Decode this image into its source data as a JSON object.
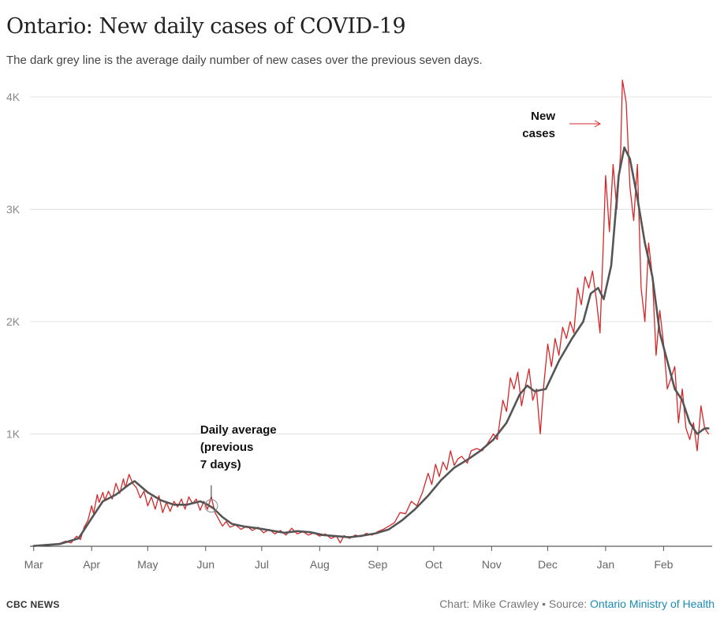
{
  "header": {
    "title": "Ontario: New daily cases of COVID-19",
    "subtitle": "The dark grey line is the average daily number of new cases over the previous seven days."
  },
  "footer": {
    "brand": "CBC NEWS",
    "credit_prefix": "Chart: Mike Crawley • Source: ",
    "source_link": "Ontario Ministry of Health"
  },
  "colors": {
    "daily_line": "#d62728",
    "average_line": "#555555",
    "grid": "#e3e3e3",
    "link": "#1a8bb8"
  },
  "chart_data": {
    "type": "line",
    "xlim": [
      "2020-02-28",
      "2021-02-27"
    ],
    "ylim": [
      0,
      4000
    ],
    "y_ticks": [
      {
        "v": 1000,
        "label": "1K"
      },
      {
        "v": 2000,
        "label": "2K"
      },
      {
        "v": 3000,
        "label": "3K"
      },
      {
        "v": 4000,
        "label": "4K"
      }
    ],
    "x_ticks": [
      {
        "date": "2020-03-01",
        "label": "Mar"
      },
      {
        "date": "2020-04-01",
        "label": "Apr"
      },
      {
        "date": "2020-05-01",
        "label": "May"
      },
      {
        "date": "2020-06-01",
        "label": "Jun"
      },
      {
        "date": "2020-07-01",
        "label": "Jul"
      },
      {
        "date": "2020-08-01",
        "label": "Aug"
      },
      {
        "date": "2020-09-01",
        "label": "Sep"
      },
      {
        "date": "2020-10-01",
        "label": "Oct"
      },
      {
        "date": "2020-11-01",
        "label": "Nov"
      },
      {
        "date": "2020-12-01",
        "label": "Dec"
      },
      {
        "date": "2021-01-01",
        "label": "Jan"
      },
      {
        "date": "2021-02-01",
        "label": "Feb"
      }
    ],
    "grid": true,
    "series": [
      {
        "key": "daily",
        "points": [
          [
            "2020-03-01",
            3
          ],
          [
            "2020-03-06",
            6
          ],
          [
            "2020-03-11",
            15
          ],
          [
            "2020-03-15",
            25
          ],
          [
            "2020-03-18",
            45
          ],
          [
            "2020-03-21",
            30
          ],
          [
            "2020-03-24",
            90
          ],
          [
            "2020-03-26",
            60
          ],
          [
            "2020-03-28",
            170
          ],
          [
            "2020-03-30",
            230
          ],
          [
            "2020-04-01",
            360
          ],
          [
            "2020-04-02",
            290
          ],
          [
            "2020-04-04",
            460
          ],
          [
            "2020-04-05",
            390
          ],
          [
            "2020-04-07",
            480
          ],
          [
            "2020-04-08",
            410
          ],
          [
            "2020-04-10",
            490
          ],
          [
            "2020-04-12",
            420
          ],
          [
            "2020-04-14",
            560
          ],
          [
            "2020-04-16",
            470
          ],
          [
            "2020-04-18",
            600
          ],
          [
            "2020-04-19,",
            520
          ],
          [
            "2020-04-21",
            640
          ],
          [
            "2020-04-23",
            560
          ],
          [
            "2020-04-25",
            520
          ],
          [
            "2020-04-27",
            430
          ],
          [
            "2020-04-29",
            490
          ],
          [
            "2020-05-01",
            360
          ],
          [
            "2020-05-03",
            440
          ],
          [
            "2020-05-05",
            330
          ],
          [
            "2020-05-07",
            450
          ],
          [
            "2020-05-09",
            300
          ],
          [
            "2020-05-11",
            390
          ],
          [
            "2020-05-13",
            310
          ],
          [
            "2020-05-15",
            400
          ],
          [
            "2020-05-17",
            350
          ],
          [
            "2020-05-19",
            420
          ],
          [
            "2020-05-21",
            330
          ],
          [
            "2020-05-23",
            440
          ],
          [
            "2020-05-25",
            380
          ],
          [
            "2020-05-27",
            420
          ],
          [
            "2020-05-29",
            320
          ],
          [
            "2020-05-31",
            400
          ],
          [
            "2020-06-02",
            330
          ],
          [
            "2020-06-04",
            440
          ],
          [
            "2020-06-06",
            300
          ],
          [
            "2020-06-08",
            240
          ],
          [
            "2020-06-10",
            180
          ],
          [
            "2020-06-12",
            220
          ],
          [
            "2020-06-14",
            170
          ],
          [
            "2020-06-17",
            190
          ],
          [
            "2020-06-20",
            150
          ],
          [
            "2020-06-23",
            180
          ],
          [
            "2020-06-26",
            140
          ],
          [
            "2020-06-29",
            170
          ],
          [
            "2020-07-02",
            120
          ],
          [
            "2020-07-05",
            150
          ],
          [
            "2020-07-08",
            110
          ],
          [
            "2020-07-11",
            140
          ],
          [
            "2020-07-14",
            100
          ],
          [
            "2020-07-17",
            160
          ],
          [
            "2020-07-20",
            110
          ],
          [
            "2020-07-23",
            130
          ],
          [
            "2020-07-26",
            100
          ],
          [
            "2020-07-29",
            120
          ],
          [
            "2020-08-01",
            90
          ],
          [
            "2020-08-04",
            110
          ],
          [
            "2020-08-07",
            70
          ],
          [
            "2020-08-10",
            90
          ],
          [
            "2020-08-12",
            30
          ],
          [
            "2020-08-14",
            95
          ],
          [
            "2020-08-17",
            70
          ],
          [
            "2020-08-20",
            100
          ],
          [
            "2020-08-23",
            85
          ],
          [
            "2020-08-26",
            115
          ],
          [
            "2020-08-29",
            100
          ],
          [
            "2020-09-01",
            130
          ],
          [
            "2020-09-04",
            150
          ],
          [
            "2020-09-07",
            180
          ],
          [
            "2020-09-10",
            210
          ],
          [
            "2020-09-13",
            300
          ],
          [
            "2020-09-16",
            290
          ],
          [
            "2020-09-19",
            400
          ],
          [
            "2020-09-22",
            360
          ],
          [
            "2020-09-25",
            480
          ],
          [
            "2020-09-28",
            650
          ],
          [
            "2020-09-30",
            550
          ],
          [
            "2020-10-02",
            730
          ],
          [
            "2020-10-04",
            620
          ],
          [
            "2020-10-06",
            750
          ],
          [
            "2020-10-08",
            680
          ],
          [
            "2020-10-10",
            850
          ],
          [
            "2020-10-12",
            720
          ],
          [
            "2020-10-14",
            780
          ],
          [
            "2020-10-16",
            800
          ],
          [
            "2020-10-19",
            740
          ],
          [
            "2020-10-21",
            850
          ],
          [
            "2020-10-24",
            870
          ],
          [
            "2020-10-27",
            850
          ],
          [
            "2020-10-30",
            920
          ],
          [
            "2020-11-02",
            1000
          ],
          [
            "2020-11-04",
            950
          ],
          [
            "2020-11-07",
            1300
          ],
          [
            "2020-11-09",
            1200
          ],
          [
            "2020-11-11",
            1500
          ],
          [
            "2020-11-13",
            1400
          ],
          [
            "2020-11-15",
            1550
          ],
          [
            "2020-11-17",
            1250
          ],
          [
            "2020-11-19",
            1420
          ],
          [
            "2020-11-21",
            1580
          ],
          [
            "2020-11-23",
            1300
          ],
          [
            "2020-11-25",
            1400
          ],
          [
            "2020-11-27",
            1000
          ],
          [
            "2020-11-29",
            1450
          ],
          [
            "2020-12-01",
            1800
          ],
          [
            "2020-12-03",
            1600
          ],
          [
            "2020-12-05",
            1850
          ],
          [
            "2020-12-07",
            1700
          ],
          [
            "2020-12-09",
            1950
          ],
          [
            "2020-12-11",
            1850
          ],
          [
            "2020-12-13",
            2000
          ],
          [
            "2020-12-15",
            1900
          ],
          [
            "2020-12-17",
            2300
          ],
          [
            "2020-12-19",
            2150
          ],
          [
            "2020-12-21",
            2400
          ],
          [
            "2020-12-23",
            2300
          ],
          [
            "2020-12-25",
            2450
          ],
          [
            "2020-12-27",
            2200
          ],
          [
            "2020-12-29",
            1900
          ],
          [
            "2020-12-31",
            2800
          ],
          [
            "2021-01-01",
            3300
          ],
          [
            "2021-01-03",
            2800
          ],
          [
            "2021-01-05",
            3400
          ],
          [
            "2021-01-07",
            3000
          ],
          [
            "2021-01-09",
            3500
          ],
          [
            "2021-01-10",
            4150
          ],
          [
            "2021-01-12",
            3950
          ],
          [
            "2021-01-14",
            3200
          ],
          [
            "2021-01-16",
            2900
          ],
          [
            "2021-01-18",
            3400
          ],
          [
            "2021-01-20",
            2300
          ],
          [
            "2021-01-22",
            2000
          ],
          [
            "2021-01-24",
            2700
          ],
          [
            "2021-01-26",
            2400
          ],
          [
            "2021-01-28",
            1700
          ],
          [
            "2021-01-30",
            2100
          ],
          [
            "2021-02-01",
            1800
          ],
          [
            "2021-02-03",
            1400
          ],
          [
            "2021-02-05",
            1500
          ],
          [
            "2021-02-07",
            1600
          ],
          [
            "2021-02-09",
            1100
          ],
          [
            "2021-02-11",
            1400
          ],
          [
            "2021-02-13",
            1050
          ],
          [
            "2021-02-15",
            950
          ],
          [
            "2021-02-17",
            1100
          ],
          [
            "2021-02-19",
            850
          ],
          [
            "2021-02-21",
            1250
          ],
          [
            "2021-02-23",
            1050
          ],
          [
            "2021-02-25",
            1000
          ]
        ]
      },
      {
        "key": "average",
        "points": [
          [
            "2020-03-01",
            3
          ],
          [
            "2020-03-15",
            20
          ],
          [
            "2020-03-25",
            70
          ],
          [
            "2020-04-01",
            250
          ],
          [
            "2020-04-07",
            400
          ],
          [
            "2020-04-14",
            460
          ],
          [
            "2020-04-21",
            550
          ],
          [
            "2020-04-24",
            580
          ],
          [
            "2020-05-01",
            480
          ],
          [
            "2020-05-08",
            410
          ],
          [
            "2020-05-15",
            370
          ],
          [
            "2020-05-22",
            370
          ],
          [
            "2020-05-29",
            400
          ],
          [
            "2020-06-01",
            380
          ],
          [
            "2020-06-05",
            340
          ],
          [
            "2020-06-10",
            260
          ],
          [
            "2020-06-15",
            200
          ],
          [
            "2020-06-22",
            175
          ],
          [
            "2020-06-29",
            160
          ],
          [
            "2020-07-06",
            140
          ],
          [
            "2020-07-13",
            120
          ],
          [
            "2020-07-20",
            135
          ],
          [
            "2020-07-27",
            125
          ],
          [
            "2020-08-03",
            100
          ],
          [
            "2020-08-10",
            90
          ],
          [
            "2020-08-17",
            80
          ],
          [
            "2020-08-24",
            95
          ],
          [
            "2020-08-31",
            115
          ],
          [
            "2020-09-07",
            150
          ],
          [
            "2020-09-14",
            230
          ],
          [
            "2020-09-21",
            330
          ],
          [
            "2020-09-28",
            450
          ],
          [
            "2020-10-05",
            590
          ],
          [
            "2020-10-12",
            700
          ],
          [
            "2020-10-19",
            770
          ],
          [
            "2020-10-26",
            850
          ],
          [
            "2020-11-02",
            950
          ],
          [
            "2020-11-09",
            1100
          ],
          [
            "2020-11-16",
            1350
          ],
          [
            "2020-11-20",
            1430
          ],
          [
            "2020-11-24",
            1380
          ],
          [
            "2020-11-30",
            1400
          ],
          [
            "2020-12-07",
            1650
          ],
          [
            "2020-12-14",
            1850
          ],
          [
            "2020-12-20",
            2000
          ],
          [
            "2020-12-24",
            2250
          ],
          [
            "2020-12-28",
            2300
          ],
          [
            "2020-12-31",
            2200
          ],
          [
            "2021-01-04",
            2500
          ],
          [
            "2021-01-08",
            3300
          ],
          [
            "2021-01-11",
            3550
          ],
          [
            "2021-01-14",
            3450
          ],
          [
            "2021-01-18",
            3100
          ],
          [
            "2021-01-22",
            2700
          ],
          [
            "2021-01-26",
            2400
          ],
          [
            "2021-01-30",
            1900
          ],
          [
            "2021-02-03",
            1650
          ],
          [
            "2021-02-07",
            1400
          ],
          [
            "2021-02-11",
            1300
          ],
          [
            "2021-02-15",
            1100
          ],
          [
            "2021-02-19",
            1000
          ],
          [
            "2021-02-23",
            1050
          ],
          [
            "2021-02-25",
            1050
          ]
        ]
      }
    ],
    "annotations": {
      "daily_average": [
        "Daily average",
        "(previous",
        "7 days)"
      ],
      "new_cases": [
        "New",
        "cases"
      ]
    }
  }
}
